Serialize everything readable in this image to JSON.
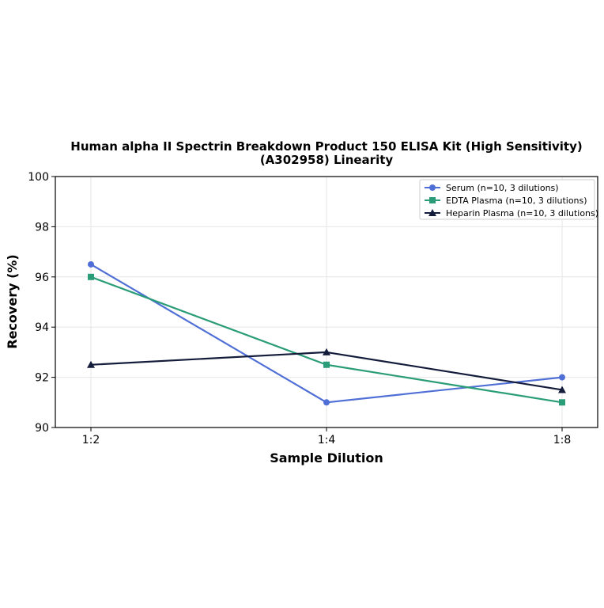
{
  "chart_data": {
    "type": "line",
    "title_line1": "Human alpha II Spectrin Breakdown Product 150 ELISA Kit (High Sensitivity)",
    "title_line2": "(A302958) Linearity",
    "xlabel": "Sample Dilution",
    "ylabel": "Recovery (%)",
    "categories": [
      "1:2",
      "1:4",
      "1:8"
    ],
    "ylim": [
      90,
      100
    ],
    "yticks": [
      "90",
      "92",
      "94",
      "96",
      "98",
      "100"
    ],
    "grid": true,
    "legend_position": "top-right",
    "series": [
      {
        "name": "Serum (n=10, 3 dilutions)",
        "values": [
          96.5,
          91.0,
          92.0
        ],
        "color": "#4f6fd6",
        "marker": "circle"
      },
      {
        "name": "EDTA Plasma (n=10, 3 dilutions)",
        "values": [
          96.0,
          92.5,
          91.0
        ],
        "color": "#2a9d78",
        "marker": "square"
      },
      {
        "name": "Heparin Plasma (n=10, 3 dilutions)",
        "values": [
          92.5,
          93.0,
          91.5
        ],
        "color": "#141c3c",
        "marker": "triangle"
      }
    ]
  }
}
